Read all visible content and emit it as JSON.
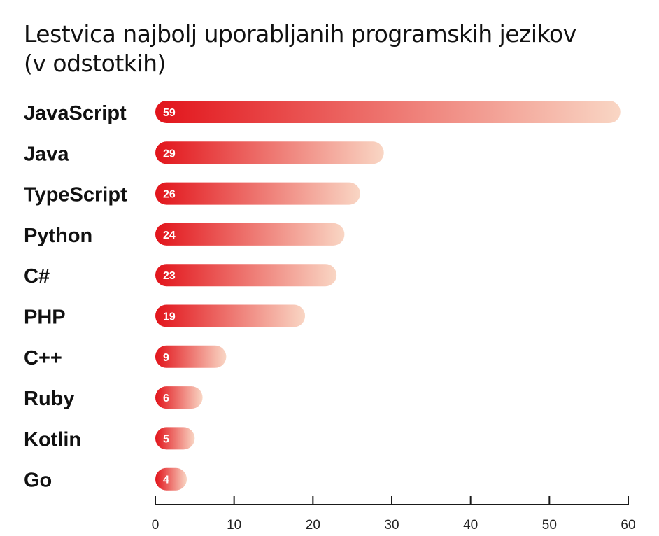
{
  "chart_data": {
    "type": "bar",
    "orientation": "horizontal",
    "title_line1": "Lestvica najbolj uporabljanih programskih jezikov",
    "title_line2": "(v odstotkih)",
    "categories": [
      "JavaScript",
      "Java",
      "TypeScript",
      "Python",
      "C#",
      "PHP",
      "C++",
      "Ruby",
      "Kotlin",
      "Go"
    ],
    "values": [
      59,
      29,
      26,
      24,
      23,
      19,
      9,
      6,
      5,
      4
    ],
    "xlim": [
      0,
      60
    ],
    "x_ticks": [
      "0",
      "10",
      "20",
      "30",
      "40",
      "50",
      "60"
    ],
    "grid": false,
    "bar_gradient": {
      "start": "#e2141b",
      "end": "#f9d6c4"
    }
  }
}
